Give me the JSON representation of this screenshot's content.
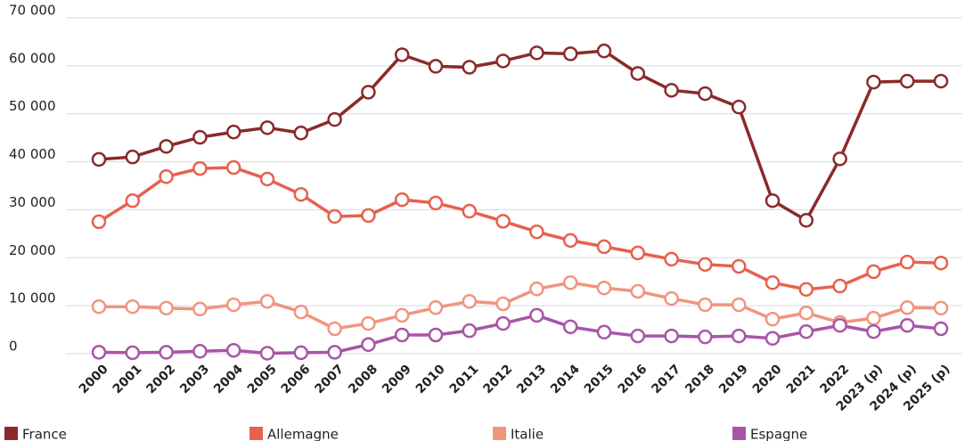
{
  "chart_data": {
    "type": "line",
    "categories": [
      "2000",
      "2001",
      "2002",
      "2003",
      "2004",
      "2005",
      "2006",
      "2007",
      "2008",
      "2009",
      "2010",
      "2011",
      "2012",
      "2013",
      "2014",
      "2015",
      "2016",
      "2017",
      "2018",
      "2019",
      "2020",
      "2021",
      "2022",
      "2023 (p)",
      "2024 (p)",
      "2025 (p)"
    ],
    "series": [
      {
        "name": "France",
        "color": "#8b2a2a",
        "values": [
          40500,
          41000,
          43200,
          45100,
          46200,
          47100,
          46000,
          48800,
          54500,
          62300,
          59900,
          59700,
          61000,
          62700,
          62500,
          63100,
          58400,
          54900,
          54200,
          51400,
          31900,
          27800,
          40600,
          56600,
          56800,
          56800
        ]
      },
      {
        "name": "Allemagne",
        "color": "#e8604f",
        "values": [
          27500,
          31900,
          36900,
          38600,
          38800,
          36400,
          33200,
          28600,
          28800,
          32100,
          31400,
          29700,
          27600,
          25400,
          23600,
          22300,
          21000,
          19700,
          18600,
          18200,
          14800,
          13400,
          14100,
          17100,
          19100,
          18900
        ]
      },
      {
        "name": "Italie",
        "color": "#f0957e",
        "values": [
          9800,
          9800,
          9500,
          9300,
          10200,
          10900,
          8700,
          5200,
          6300,
          8000,
          9600,
          10900,
          10400,
          13500,
          14800,
          13700,
          13000,
          11500,
          10200,
          10200,
          7200,
          8500,
          6500,
          7400,
          9600,
          9500
        ]
      },
      {
        "name": "Espagne",
        "color": "#a855a8",
        "values": [
          300,
          200,
          300,
          500,
          700,
          100,
          200,
          300,
          1900,
          3900,
          3900,
          4800,
          6300,
          8000,
          5600,
          4500,
          3700,
          3700,
          3500,
          3700,
          3200,
          4600,
          5900,
          4600,
          5900,
          5200
        ]
      }
    ],
    "ylim": [
      0,
      70000
    ],
    "yticks": [
      0,
      {
        "value": 10000,
        "label": "10 000"
      },
      {
        "value": 20000,
        "label": "20 000"
      },
      {
        "value": 30000,
        "label": "30 000"
      },
      {
        "value": 40000,
        "label": "40 000"
      },
      {
        "value": 50000,
        "label": "50 000"
      },
      {
        "value": 60000,
        "label": "60 000"
      },
      {
        "value": 70000,
        "label": "70 000"
      }
    ],
    "grid": true,
    "legend": "bottom"
  }
}
